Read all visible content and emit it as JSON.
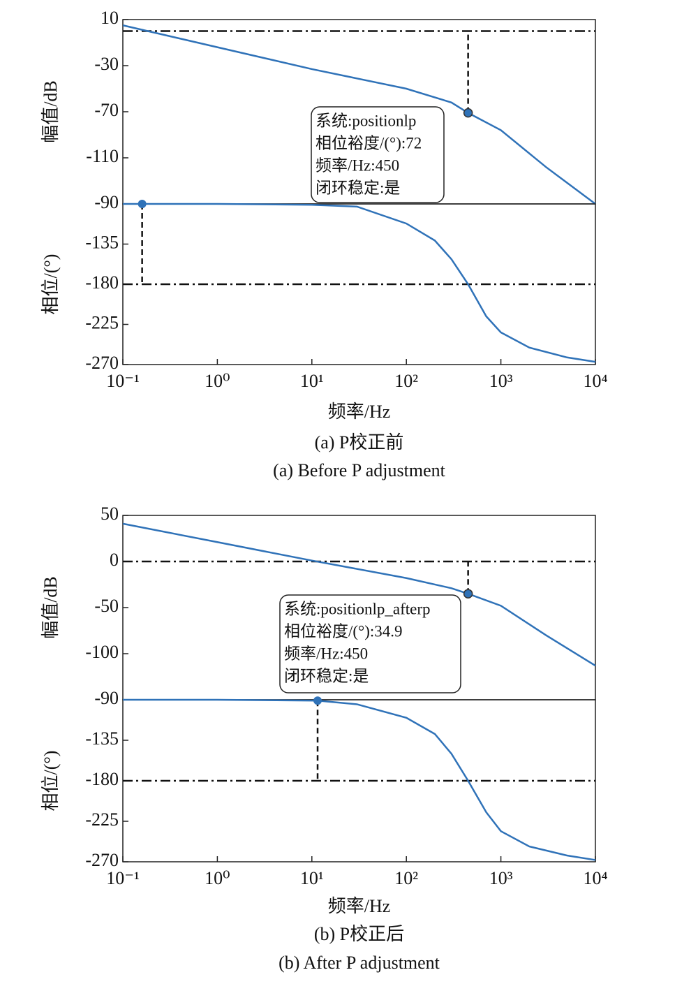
{
  "chart_data": [
    {
      "type": "line",
      "ylabel": "幅值/dB",
      "xscale": "log",
      "xlim": [
        0.1,
        10000
      ],
      "ylim": [
        -150,
        10
      ],
      "yticks": [
        10,
        -30,
        -70,
        -110
      ],
      "color": "#2f72b8",
      "x": [
        0.1,
        1,
        10,
        100,
        300,
        450,
        1000,
        3000,
        10000
      ],
      "values": [
        5,
        -14,
        -33,
        -50,
        -62,
        -71,
        -86,
        -118,
        -150
      ],
      "reference_line": 0,
      "marker": {
        "x": 450,
        "y": -71
      },
      "annotation": [
        "系统:positionlp",
        "相位裕度/(°):72",
        "频率/Hz:450",
        "闭环稳定:是"
      ]
    },
    {
      "type": "line",
      "ylabel": "相位/(°)",
      "xlabel": "频率/Hz",
      "xscale": "log",
      "xlim": [
        0.1,
        10000
      ],
      "ylim": [
        -270,
        -90
      ],
      "yticks": [
        -90,
        -135,
        -180,
        -225,
        -270
      ],
      "xticks": [
        {
          "value": 0.1,
          "label": "10⁻¹"
        },
        {
          "value": 1,
          "label": "10⁰"
        },
        {
          "value": 10,
          "label": "10¹"
        },
        {
          "value": 100,
          "label": "10²"
        },
        {
          "value": 1000,
          "label": "10³"
        },
        {
          "value": 10000,
          "label": "10⁴"
        }
      ],
      "color": "#2f72b8",
      "x": [
        0.1,
        1,
        10,
        30,
        100,
        200,
        300,
        450,
        700,
        1000,
        2000,
        5000,
        10000
      ],
      "values": [
        -90,
        -90,
        -91,
        -93,
        -112,
        -131,
        -152,
        -180,
        -216,
        -234,
        -251,
        -262,
        -267
      ],
      "reference_line": -180,
      "marker": {
        "x": 0.16,
        "y": -90
      },
      "caption": "(a) P校正前",
      "caption_en": "(a) Before P adjustment"
    },
    {
      "type": "line",
      "ylabel": "幅值/dB",
      "xscale": "log",
      "xlim": [
        0.1,
        10000
      ],
      "ylim": [
        -150,
        50
      ],
      "yticks": [
        50,
        0,
        -50,
        -100
      ],
      "color": "#2f72b8",
      "x": [
        0.1,
        1,
        10,
        100,
        300,
        450,
        1000,
        3000,
        10000
      ],
      "values": [
        41,
        21,
        1,
        -18,
        -29,
        -35,
        -48,
        -80,
        -113
      ],
      "reference_line": 0,
      "marker": {
        "x": 450,
        "y": -35
      },
      "annotation": [
        "系统:positionlp_afterp",
        "相位裕度/(°):34.9",
        "频率/Hz:450",
        "闭环稳定:是"
      ]
    },
    {
      "type": "line",
      "ylabel": "相位/(°)",
      "xlabel": "频率/Hz",
      "xscale": "log",
      "xlim": [
        0.1,
        10000
      ],
      "ylim": [
        -270,
        -90
      ],
      "yticks": [
        -90,
        -135,
        -180,
        -225,
        -270
      ],
      "xticks": [
        {
          "value": 0.1,
          "label": "10⁻¹"
        },
        {
          "value": 1,
          "label": "10⁰"
        },
        {
          "value": 10,
          "label": "10¹"
        },
        {
          "value": 100,
          "label": "10²"
        },
        {
          "value": 1000,
          "label": "10³"
        },
        {
          "value": 10000,
          "label": "10⁴"
        }
      ],
      "color": "#2f72b8",
      "x": [
        0.1,
        1,
        11.5,
        30,
        100,
        200,
        300,
        450,
        700,
        1000,
        2000,
        5000,
        10000
      ],
      "values": [
        -90,
        -90,
        -91,
        -95,
        -110,
        -128,
        -150,
        -180,
        -215,
        -236,
        -253,
        -263,
        -268
      ],
      "reference_line": -180,
      "marker": {
        "x": 11.5,
        "y": -91
      },
      "caption": "(b) P校正后",
      "caption_en": "(b) After P adjustment"
    }
  ]
}
